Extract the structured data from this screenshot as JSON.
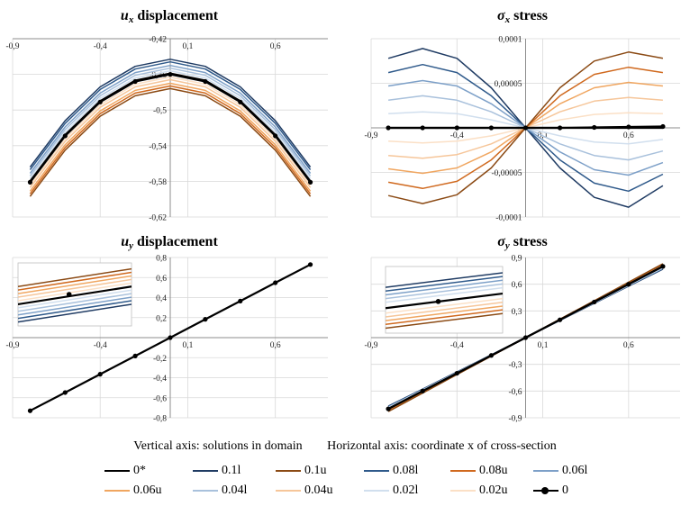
{
  "colors": {
    "0*": "#000000",
    "0.1l": "#1f3b63",
    "0.1u": "#8b4a14",
    "0.08l": "#2f5a8b",
    "0.08u": "#d0691e",
    "0.06l": "#7da0c8",
    "0.06u": "#f0a660",
    "0.04l": "#a9c1dc",
    "0.04u": "#f6c69a",
    "0.02l": "#d1dfee",
    "0.02u": "#fbe0c6",
    "0": "#000000"
  },
  "legend": {
    "vertical_caption": "Vertical axis: solutions in domain",
    "horizontal_caption": "Horizontal axis: coordinate x of cross-section",
    "entries": [
      "0*",
      "0.1l",
      "0.1u",
      "0.08l",
      "0.08u",
      "0.06l",
      "0.06u",
      "0.04l",
      "0.04u",
      "0.02l",
      "0.02u",
      "0"
    ]
  },
  "chart_data": [
    {
      "id": "ux",
      "type": "line",
      "title_sym": "u",
      "title_sub": "x",
      "title_rest": " displacement",
      "xlim": [
        -0.9,
        0.9
      ],
      "ylim": [
        -0.62,
        -0.42
      ],
      "xticks": [
        -0.9,
        -0.4,
        0.1,
        0.6
      ],
      "xtick_labels": [
        "-0,9",
        "-0,4",
        "0,1",
        "0,6"
      ],
      "yticks": [
        -0.62,
        -0.58,
        -0.54,
        -0.5,
        -0.46,
        -0.42
      ],
      "ytick_labels": [
        "-0,62",
        "-0,58",
        "-0,54",
        "-0,5",
        "-0,46",
        "-0,42"
      ],
      "x": [
        -0.8,
        -0.6,
        -0.4,
        -0.2,
        0,
        0.2,
        0.4,
        0.6,
        0.8
      ],
      "series": [
        {
          "name": "0.1l",
          "values": [
            -0.564,
            -0.512,
            -0.474,
            -0.451,
            -0.443,
            -0.451,
            -0.474,
            -0.512,
            -0.564
          ]
        },
        {
          "name": "0.08l",
          "values": [
            -0.567,
            -0.515,
            -0.477,
            -0.454,
            -0.446,
            -0.454,
            -0.477,
            -0.515,
            -0.567
          ]
        },
        {
          "name": "0.06l",
          "values": [
            -0.571,
            -0.519,
            -0.481,
            -0.458,
            -0.45,
            -0.458,
            -0.481,
            -0.519,
            -0.571
          ]
        },
        {
          "name": "0.04l",
          "values": [
            -0.574,
            -0.522,
            -0.484,
            -0.461,
            -0.453,
            -0.461,
            -0.484,
            -0.522,
            -0.574
          ]
        },
        {
          "name": "0.02l",
          "values": [
            -0.577,
            -0.525,
            -0.487,
            -0.464,
            -0.456,
            -0.464,
            -0.487,
            -0.525,
            -0.577
          ]
        },
        {
          "name": "0.02u",
          "values": [
            -0.584,
            -0.532,
            -0.494,
            -0.471,
            -0.463,
            -0.471,
            -0.494,
            -0.532,
            -0.584
          ]
        },
        {
          "name": "0.04u",
          "values": [
            -0.587,
            -0.535,
            -0.497,
            -0.474,
            -0.466,
            -0.474,
            -0.497,
            -0.535,
            -0.587
          ]
        },
        {
          "name": "0.06u",
          "values": [
            -0.591,
            -0.539,
            -0.501,
            -0.478,
            -0.47,
            -0.478,
            -0.501,
            -0.539,
            -0.591
          ]
        },
        {
          "name": "0.08u",
          "values": [
            -0.594,
            -0.542,
            -0.504,
            -0.481,
            -0.473,
            -0.481,
            -0.504,
            -0.542,
            -0.594
          ]
        },
        {
          "name": "0.1u",
          "values": [
            -0.597,
            -0.545,
            -0.507,
            -0.484,
            -0.476,
            -0.484,
            -0.507,
            -0.545,
            -0.597
          ]
        },
        {
          "name": "0*",
          "values": [
            -0.58,
            -0.528,
            -0.49,
            -0.467,
            -0.459,
            -0.467,
            -0.49,
            -0.528,
            -0.58
          ]
        },
        {
          "name": "0",
          "values": [
            -0.581,
            -0.529,
            -0.491,
            -0.468,
            -0.46,
            -0.468,
            -0.491,
            -0.529,
            -0.581
          ],
          "markers": true
        }
      ]
    },
    {
      "id": "sx",
      "type": "line",
      "title_sym": "σ",
      "title_sub": "x",
      "title_rest": " stress",
      "xlim": [
        -0.9,
        0.9
      ],
      "ylim": [
        -0.0001,
        0.0001
      ],
      "xticks": [
        -0.9,
        -0.4,
        0.1,
        0.6
      ],
      "xtick_labels": [
        "-0,9",
        "-0,4",
        "0,1",
        "0,6"
      ],
      "yticks": [
        -0.0001,
        -5e-05,
        0,
        5e-05,
        0.0001
      ],
      "ytick_labels": [
        "-0,0001",
        "-0,00005",
        "0",
        "0,00005",
        "0,0001"
      ],
      "x": [
        -0.8,
        -0.6,
        -0.4,
        -0.2,
        0,
        0.2,
        0.4,
        0.6,
        0.8
      ],
      "series": [
        {
          "name": "0.1l",
          "values": [
            7.8e-05,
            8.9e-05,
            7.8e-05,
            4.5e-05,
            0,
            -4.5e-05,
            -7.8e-05,
            -8.9e-05,
            -6.5e-05
          ]
        },
        {
          "name": "0.08l",
          "values": [
            6.2e-05,
            7.1e-05,
            6.2e-05,
            3.6e-05,
            0,
            -3.6e-05,
            -6.2e-05,
            -7.1e-05,
            -5.2e-05
          ]
        },
        {
          "name": "0.06l",
          "values": [
            4.7e-05,
            5.3e-05,
            4.7e-05,
            2.7e-05,
            0,
            -2.7e-05,
            -4.7e-05,
            -5.3e-05,
            -3.9e-05
          ]
        },
        {
          "name": "0.04l",
          "values": [
            3.1e-05,
            3.6e-05,
            3.1e-05,
            1.8e-05,
            0,
            -1.8e-05,
            -3.1e-05,
            -3.6e-05,
            -2.6e-05
          ]
        },
        {
          "name": "0.02l",
          "values": [
            1.6e-05,
            1.8e-05,
            1.6e-05,
            9e-06,
            0,
            -9e-06,
            -1.6e-05,
            -1.8e-05,
            -1.3e-05
          ]
        },
        {
          "name": "0.02u",
          "values": [
            -1.5e-05,
            -1.7e-05,
            -1.5e-05,
            -9e-06,
            0,
            9e-06,
            1.5e-05,
            1.7e-05,
            1.6e-05
          ]
        },
        {
          "name": "0.04u",
          "values": [
            -3.1e-05,
            -3.4e-05,
            -3e-05,
            -1.8e-05,
            0,
            1.8e-05,
            3e-05,
            3.4e-05,
            3.1e-05
          ]
        },
        {
          "name": "0.06u",
          "values": [
            -4.6e-05,
            -5.1e-05,
            -4.5e-05,
            -2.7e-05,
            0,
            2.7e-05,
            4.5e-05,
            5.1e-05,
            4.7e-05
          ]
        },
        {
          "name": "0.08u",
          "values": [
            -6.1e-05,
            -6.8e-05,
            -6e-05,
            -3.6e-05,
            0,
            3.6e-05,
            6e-05,
            6.8e-05,
            6.2e-05
          ]
        },
        {
          "name": "0.1u",
          "values": [
            -7.6e-05,
            -8.5e-05,
            -7.5e-05,
            -4.5e-05,
            0,
            4.5e-05,
            7.5e-05,
            8.5e-05,
            7.8e-05
          ]
        },
        {
          "name": "0*",
          "values": [
            0,
            0,
            0,
            0,
            0,
            0,
            0,
            0,
            0
          ]
        },
        {
          "name": "0",
          "values": [
            0,
            0,
            0,
            0,
            0,
            0,
            5e-07,
            1e-06,
            1.5e-06
          ],
          "markers": true
        }
      ]
    },
    {
      "id": "uy",
      "type": "line",
      "title_sym": "u",
      "title_sub": "y",
      "title_rest": " displacement",
      "xlim": [
        -0.9,
        0.9
      ],
      "ylim": [
        -0.8,
        0.8
      ],
      "xticks": [
        -0.9,
        -0.4,
        0.1,
        0.6
      ],
      "xtick_labels": [
        "-0,9",
        "-0,4",
        "0,1",
        "0,6"
      ],
      "yticks": [
        -0.8,
        -0.6,
        -0.4,
        -0.2,
        0.2,
        0.4,
        0.6,
        0.8
      ],
      "ytick_labels": [
        "-0,8",
        "-0,6",
        "-0,4",
        "-0,2",
        "0,2",
        "0,4",
        "0,6",
        "0,8"
      ],
      "x": [
        -0.8,
        -0.6,
        -0.4,
        -0.2,
        0,
        0.2,
        0.4,
        0.6,
        0.8
      ],
      "series": [
        {
          "name": "0",
          "values": [
            -0.73,
            -0.548,
            -0.365,
            -0.183,
            0,
            0.183,
            0.365,
            0.548,
            0.73
          ],
          "markers": true
        }
      ],
      "inset": {
        "position": "top-left",
        "series": [
          {
            "name": "0.1u",
            "values": [
              0.5,
              0.95
            ]
          },
          {
            "name": "0.08u",
            "values": [
              0.41,
              0.86
            ]
          },
          {
            "name": "0.06u",
            "values": [
              0.32,
              0.77
            ]
          },
          {
            "name": "0.04u",
            "values": [
              0.23,
              0.68
            ]
          },
          {
            "name": "0.02u",
            "values": [
              0.14,
              0.59
            ]
          },
          {
            "name": "0*",
            "values": [
              0.05,
              0.5
            ]
          },
          {
            "name": "0.02l",
            "values": [
              -0.04,
              0.41
            ]
          },
          {
            "name": "0.04l",
            "values": [
              -0.13,
              0.32
            ]
          },
          {
            "name": "0.06l",
            "values": [
              -0.22,
              0.23
            ]
          },
          {
            "name": "0.08l",
            "values": [
              -0.31,
              0.14
            ]
          },
          {
            "name": "0.1l",
            "values": [
              -0.4,
              0.05
            ]
          }
        ],
        "marker_point": [
          0.45,
          0.3
        ]
      }
    },
    {
      "id": "sy",
      "type": "line",
      "title_sym": "σ",
      "title_sub": "y",
      "title_rest": " stress",
      "xlim": [
        -0.9,
        0.9
      ],
      "ylim": [
        -0.9,
        0.9
      ],
      "xticks": [
        -0.9,
        -0.4,
        0.1,
        0.6
      ],
      "xtick_labels": [
        "-0,9",
        "-0,4",
        "0,1",
        "0,6"
      ],
      "yticks": [
        -0.9,
        -0.6,
        -0.3,
        0.3,
        0.6,
        0.9
      ],
      "ytick_labels": [
        "-0,9",
        "-0,6",
        "-0,3",
        "0,3",
        "0,6",
        "0,9"
      ],
      "x": [
        -0.8,
        -0.6,
        -0.4,
        -0.2,
        0,
        0.2,
        0.4,
        0.6,
        0.8
      ],
      "series": [
        {
          "name": "0.1l",
          "values": [
            -0.77,
            -0.578,
            -0.385,
            -0.193,
            0,
            0.193,
            0.385,
            0.578,
            0.77
          ]
        },
        {
          "name": "0.08l",
          "values": [
            -0.775,
            -0.581,
            -0.388,
            -0.194,
            0,
            0.194,
            0.388,
            0.581,
            0.775
          ]
        },
        {
          "name": "0.06l",
          "values": [
            -0.78,
            -0.585,
            -0.39,
            -0.195,
            0,
            0.195,
            0.39,
            0.585,
            0.78
          ]
        },
        {
          "name": "0.04l",
          "values": [
            -0.785,
            -0.589,
            -0.393,
            -0.196,
            0,
            0.196,
            0.393,
            0.589,
            0.785
          ]
        },
        {
          "name": "0.02l",
          "values": [
            -0.79,
            -0.593,
            -0.395,
            -0.198,
            0,
            0.198,
            0.395,
            0.593,
            0.79
          ]
        },
        {
          "name": "0.02u",
          "values": [
            -0.81,
            -0.608,
            -0.405,
            -0.203,
            0,
            0.203,
            0.405,
            0.608,
            0.81
          ]
        },
        {
          "name": "0.04u",
          "values": [
            -0.815,
            -0.611,
            -0.408,
            -0.204,
            0,
            0.204,
            0.408,
            0.611,
            0.815
          ]
        },
        {
          "name": "0.06u",
          "values": [
            -0.82,
            -0.615,
            -0.41,
            -0.205,
            0,
            0.205,
            0.41,
            0.615,
            0.82
          ]
        },
        {
          "name": "0.08u",
          "values": [
            -0.825,
            -0.619,
            -0.413,
            -0.206,
            0,
            0.206,
            0.413,
            0.619,
            0.825
          ]
        },
        {
          "name": "0.1u",
          "values": [
            -0.83,
            -0.623,
            -0.415,
            -0.208,
            0,
            0.208,
            0.415,
            0.623,
            0.83
          ]
        },
        {
          "name": "0*",
          "values": [
            -0.8,
            -0.6,
            -0.4,
            -0.2,
            0,
            0.2,
            0.4,
            0.6,
            0.8
          ]
        },
        {
          "name": "0",
          "values": [
            -0.8,
            -0.6,
            -0.4,
            -0.2,
            0,
            0.2,
            0.4,
            0.6,
            0.8
          ],
          "markers": true
        }
      ],
      "inset": {
        "position": "top-left",
        "series": [
          {
            "name": "0.1l",
            "values": [
              0.6,
              0.95
            ]
          },
          {
            "name": "0.08l",
            "values": [
              0.51,
              0.86
            ]
          },
          {
            "name": "0.06l",
            "values": [
              0.42,
              0.77
            ]
          },
          {
            "name": "0.04l",
            "values": [
              0.33,
              0.68
            ]
          },
          {
            "name": "0.02l",
            "values": [
              0.24,
              0.59
            ]
          },
          {
            "name": "0*",
            "values": [
              0.1,
              0.45
            ]
          },
          {
            "name": "0.02u",
            "values": [
              -0.02,
              0.33
            ]
          },
          {
            "name": "0.04u",
            "values": [
              -0.11,
              0.24
            ]
          },
          {
            "name": "0.06u",
            "values": [
              -0.2,
              0.15
            ]
          },
          {
            "name": "0.08u",
            "values": [
              -0.29,
              0.06
            ]
          },
          {
            "name": "0.1u",
            "values": [
              -0.38,
              -0.03
            ]
          }
        ],
        "marker_point": [
          0.45,
          0.26
        ]
      }
    }
  ]
}
